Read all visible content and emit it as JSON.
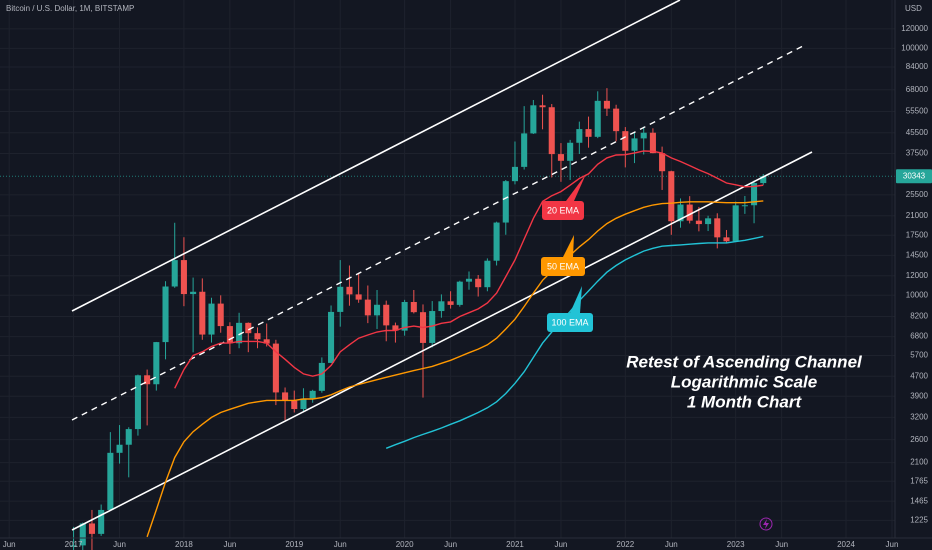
{
  "chart_data": {
    "type": "candlestick",
    "title": "Bitcoin / U.S. Dollar, 1M, BITSTAMP",
    "y_axis_label": "USD",
    "log_scale": true,
    "grid": true,
    "up_color": "#26a69a",
    "down_color": "#ef5350",
    "annotations": [
      "Retest of Ascending Channel",
      "Logarithmic Scale",
      "1 Month Chart"
    ],
    "x": [
      "2017-01",
      "2017-02",
      "2017-03",
      "2017-04",
      "2017-05",
      "2017-06",
      "2017-07",
      "2017-08",
      "2017-09",
      "2017-10",
      "2017-11",
      "2017-12",
      "2018-01",
      "2018-02",
      "2018-03",
      "2018-04",
      "2018-05",
      "2018-06",
      "2018-07",
      "2018-08",
      "2018-09",
      "2018-10",
      "2018-11",
      "2018-12",
      "2019-01",
      "2019-02",
      "2019-03",
      "2019-04",
      "2019-05",
      "2019-06",
      "2019-07",
      "2019-08",
      "2019-09",
      "2019-10",
      "2019-11",
      "2019-12",
      "2020-01",
      "2020-02",
      "2020-03",
      "2020-04",
      "2020-05",
      "2020-06",
      "2020-07",
      "2020-08",
      "2020-09",
      "2020-10",
      "2020-11",
      "2020-12",
      "2021-01",
      "2021-02",
      "2021-03",
      "2021-04",
      "2021-05",
      "2021-06",
      "2021-07",
      "2021-08",
      "2021-09",
      "2021-10",
      "2021-11",
      "2021-12",
      "2022-01",
      "2022-02",
      "2022-03",
      "2022-04",
      "2022-05",
      "2022-06",
      "2022-07",
      "2022-08",
      "2022-09",
      "2022-10",
      "2022-11",
      "2022-12",
      "2023-01",
      "2023-02",
      "2023-03",
      "2023-04"
    ],
    "open": [
      964,
      970,
      1190,
      1080,
      1350,
      2300,
      2480,
      2870,
      4740,
      4360,
      6460,
      10850,
      13880,
      10110,
      10330,
      6930,
      9250,
      7500,
      6390,
      7730,
      7020,
      6630,
      6370,
      4040,
      3740,
      3460,
      3820,
      4100,
      5320,
      8560,
      10820,
      10080,
      9600,
      8290,
      9150,
      7550,
      7190,
      9390,
      8540,
      6410,
      8630,
      9450,
      9140,
      11350,
      11660,
      10780,
      13800,
      19700,
      28980,
      33110,
      45240,
      58800,
      57750,
      37300,
      35040,
      41460,
      47100,
      43820,
      61300,
      57000,
      46200,
      38480,
      43180,
      45530,
      37640,
      31800,
      19940,
      23300,
      20050,
      19420,
      20490,
      17160,
      16540,
      23130,
      23150,
      28470
    ],
    "high": [
      1153,
      1200,
      1350,
      1420,
      2790,
      2980,
      2920,
      4770,
      5000,
      6470,
      11400,
      19660,
      17180,
      11790,
      11700,
      9770,
      9990,
      7770,
      8490,
      7760,
      7410,
      7680,
      6600,
      4230,
      4110,
      4200,
      4140,
      5600,
      9090,
      13880,
      13200,
      12330,
      10950,
      10500,
      9510,
      7750,
      9580,
      10500,
      9180,
      9470,
      10080,
      10380,
      11450,
      12480,
      12080,
      14100,
      19860,
      29300,
      41950,
      58350,
      61790,
      64900,
      59500,
      41330,
      42590,
      50500,
      52920,
      66999,
      69000,
      59100,
      47990,
      45800,
      48190,
      47440,
      40000,
      31950,
      24670,
      25200,
      22790,
      20990,
      21480,
      18380,
      23960,
      25240,
      29190,
      30990
    ],
    "low": [
      752,
      915,
      890,
      1060,
      1340,
      2080,
      1830,
      2700,
      2970,
      4110,
      5500,
      10720,
      9030,
      5870,
      6600,
      6430,
      7050,
      5780,
      6100,
      5880,
      6100,
      6200,
      3590,
      3120,
      3350,
      3390,
      3670,
      4030,
      5320,
      7460,
      9070,
      9320,
      7710,
      7300,
      6510,
      6430,
      6860,
      8440,
      3850,
      6150,
      8110,
      8830,
      8990,
      10530,
      9880,
      10380,
      13200,
      17580,
      28130,
      32300,
      45000,
      47000,
      30000,
      28800,
      29300,
      37330,
      39600,
      43290,
      53250,
      42000,
      32950,
      34300,
      37160,
      37600,
      26700,
      17570,
      18780,
      19540,
      18150,
      18200,
      15480,
      16260,
      16500,
      21360,
      19570,
      27990
    ],
    "close": [
      970,
      1190,
      1080,
      1350,
      2300,
      2480,
      2870,
      4740,
      4360,
      6460,
      10850,
      13880,
      10110,
      10330,
      6930,
      9250,
      7500,
      6390,
      7730,
      7020,
      6630,
      6370,
      4040,
      3740,
      3460,
      3820,
      4100,
      5320,
      8560,
      10820,
      10080,
      9600,
      8290,
      9150,
      7550,
      7190,
      9390,
      8540,
      6410,
      8630,
      9450,
      9140,
      11350,
      11660,
      10780,
      13800,
      19700,
      28980,
      33110,
      45240,
      58800,
      57750,
      37300,
      35040,
      41460,
      47100,
      43820,
      61300,
      57000,
      46200,
      38480,
      43180,
      45530,
      37640,
      31800,
      19940,
      23300,
      20050,
      19420,
      20490,
      17160,
      16540,
      23130,
      23150,
      28470,
      30343
    ],
    "series": [
      {
        "name": "20 EMA",
        "color": "#f23645",
        "values": [
          null,
          null,
          null,
          null,
          null,
          null,
          null,
          null,
          null,
          null,
          null,
          4200,
          5000,
          5700,
          5900,
          6200,
          6400,
          6400,
          6500,
          6500,
          6500,
          6400,
          5900,
          5500,
          5100,
          4800,
          4700,
          4800,
          5200,
          5900,
          6300,
          6700,
          6900,
          7100,
          7200,
          7200,
          7400,
          7500,
          7400,
          7500,
          7700,
          7800,
          8200,
          8500,
          8800,
          9300,
          10200,
          11900,
          13900,
          16900,
          20500,
          24000,
          25300,
          26300,
          27900,
          29700,
          31000,
          33900,
          36000,
          37000,
          37100,
          37700,
          38400,
          38300,
          37700,
          36000,
          34800,
          33500,
          32200,
          31100,
          29800,
          28500,
          28000,
          27500,
          27600,
          27900
        ]
      },
      {
        "name": "50 EMA",
        "color": "#ff9800",
        "values": [
          null,
          null,
          null,
          null,
          null,
          null,
          null,
          null,
          1050,
          1350,
          1750,
          2200,
          2550,
          2800,
          3000,
          3200,
          3350,
          3450,
          3550,
          3650,
          3700,
          3750,
          3750,
          3750,
          3750,
          3800,
          3800,
          3850,
          3950,
          4100,
          4250,
          4350,
          4450,
          4550,
          4650,
          4750,
          4850,
          4950,
          5050,
          5150,
          5300,
          5450,
          5650,
          5850,
          6050,
          6300,
          6700,
          7300,
          8000,
          9000,
          10200,
          11500,
          12500,
          13500,
          14500,
          15700,
          16800,
          18200,
          19500,
          20500,
          21300,
          22000,
          22700,
          23200,
          23500,
          23600,
          23800,
          23900,
          23900,
          23900,
          23800,
          23700,
          23700,
          23700,
          23900,
          24100
        ]
      },
      {
        "name": "100 EMA",
        "color": "#22c3d6",
        "values": [
          null,
          null,
          null,
          null,
          null,
          null,
          null,
          null,
          null,
          null,
          null,
          null,
          null,
          null,
          null,
          null,
          null,
          null,
          null,
          null,
          null,
          null,
          null,
          null,
          null,
          null,
          null,
          null,
          null,
          null,
          null,
          null,
          null,
          null,
          2400,
          2480,
          2560,
          2650,
          2730,
          2810,
          2900,
          3000,
          3100,
          3220,
          3350,
          3500,
          3700,
          4000,
          4400,
          4900,
          5600,
          6400,
          7100,
          7800,
          8600,
          9500,
          10400,
          11400,
          12400,
          13200,
          13900,
          14500,
          15100,
          15500,
          15800,
          15900,
          16000,
          16100,
          16200,
          16300,
          16300,
          16300,
          16500,
          16700,
          17000,
          17300
        ]
      }
    ],
    "xlim": [
      "2016-05",
      "2024-06"
    ],
    "xticks": [
      {
        "value": "2016-06",
        "label": "Jun"
      },
      {
        "value": "2017-01",
        "label": "2017"
      },
      {
        "value": "2017-06",
        "label": "Jun"
      },
      {
        "value": "2018-01",
        "label": "2018"
      },
      {
        "value": "2018-06",
        "label": "Jun"
      },
      {
        "value": "2019-01",
        "label": "2019"
      },
      {
        "value": "2019-06",
        "label": "Jun"
      },
      {
        "value": "2020-01",
        "label": "2020"
      },
      {
        "value": "2020-06",
        "label": "Jun"
      },
      {
        "value": "2021-01",
        "label": "2021"
      },
      {
        "value": "2021-06",
        "label": "Jun"
      },
      {
        "value": "2022-01",
        "label": "2022"
      },
      {
        "value": "2022-06",
        "label": "Jun"
      },
      {
        "value": "2023-01",
        "label": "2023"
      },
      {
        "value": "2023-06",
        "label": "Jun"
      },
      {
        "value": "2024-01",
        "label": "2024"
      },
      {
        "value": "2024-06",
        "label": "Jun"
      }
    ],
    "ylim": [
      1020,
      157000
    ],
    "yticks": [
      120000,
      100000,
      84000,
      68000,
      55500,
      45500,
      37500,
      25500,
      21000,
      17500,
      14500,
      12000,
      10000,
      8200,
      6800,
      5700,
      4700,
      3900,
      3200,
      2600,
      2100,
      1765,
      1465,
      1225
    ]
  }
}
